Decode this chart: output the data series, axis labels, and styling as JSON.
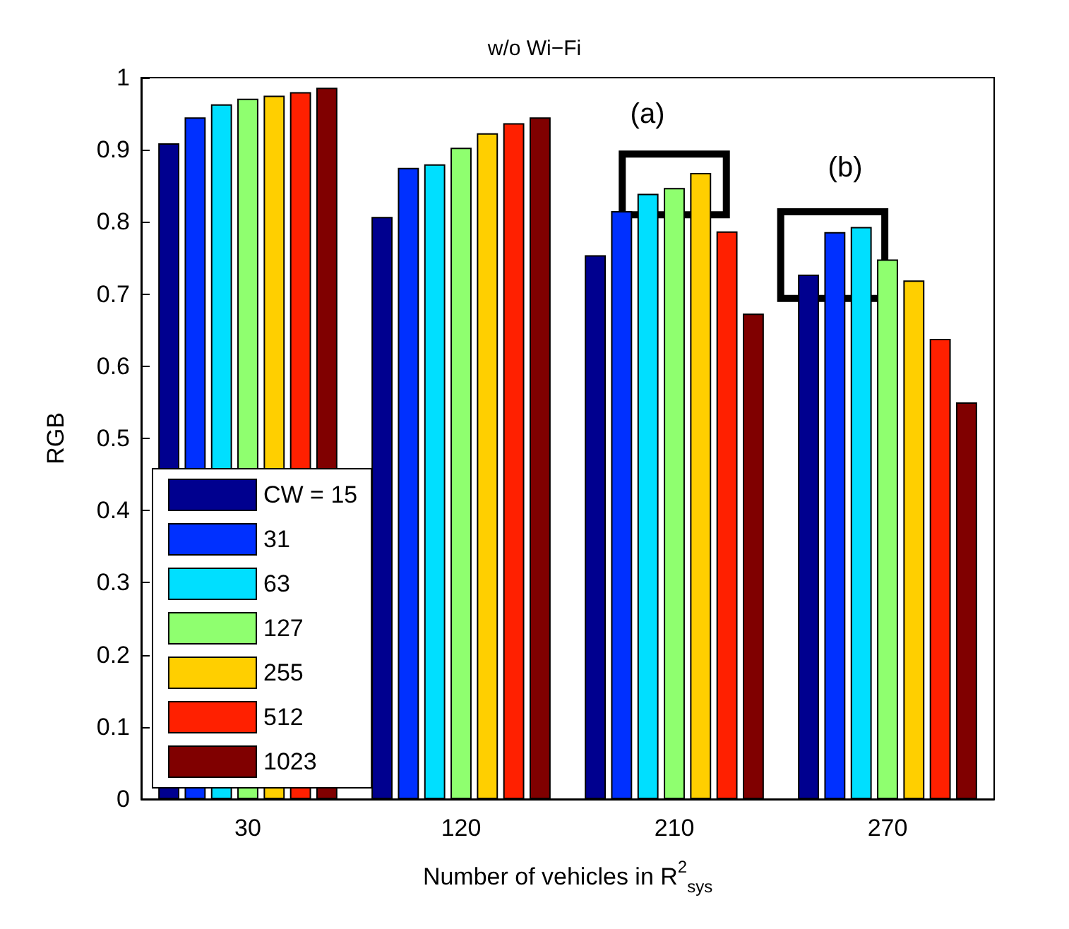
{
  "chart_data": {
    "type": "bar",
    "title": "w/o Wi−Fi",
    "xlabel": "Number of vehicles in R$^{2}$$_{sys}$",
    "ylabel": "RGB",
    "categories": [
      "30",
      "120",
      "210",
      "270"
    ],
    "series": [
      {
        "name": "CW = 15",
        "color": "#00008f",
        "values": [
          0.909,
          0.807,
          0.754,
          0.727
        ]
      },
      {
        "name": "31",
        "color": "#0030ff",
        "values": [
          0.945,
          0.875,
          0.815,
          0.786
        ]
      },
      {
        "name": "63",
        "color": "#00dfff",
        "values": [
          0.963,
          0.88,
          0.839,
          0.793
        ]
      },
      {
        "name": "127",
        "color": "#8fff6f",
        "values": [
          0.971,
          0.903,
          0.847,
          0.748
        ]
      },
      {
        "name": "255",
        "color": "#ffcf00",
        "values": [
          0.975,
          0.923,
          0.868,
          0.719
        ]
      },
      {
        "name": "512",
        "color": "#ff2000",
        "values": [
          0.98,
          0.937,
          0.787,
          0.638
        ]
      },
      {
        "name": "1023",
        "color": "#800000",
        "values": [
          0.986,
          0.945,
          0.673,
          0.55
        ]
      }
    ],
    "ylim": [
      0,
      1
    ],
    "yticks": [
      0,
      0.1,
      0.2,
      0.3,
      0.4,
      0.5,
      0.6,
      0.7,
      0.8,
      0.9,
      1
    ],
    "annotations": [
      "(a)",
      "(b)"
    ],
    "grid": false,
    "legend": "bottom left"
  }
}
